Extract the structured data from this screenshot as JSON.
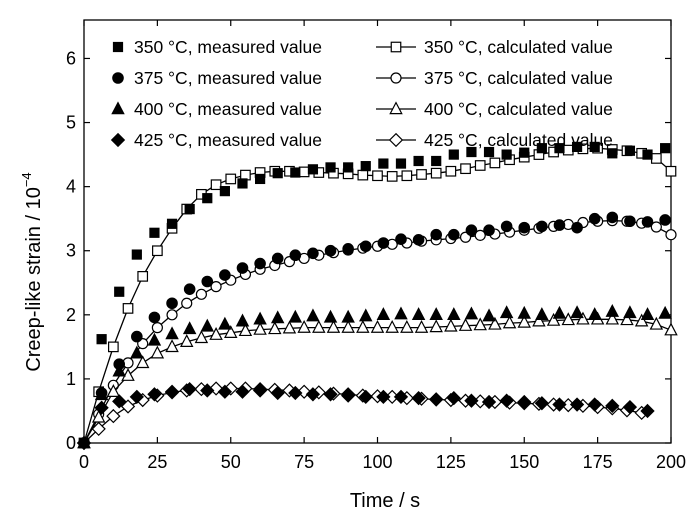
{
  "chart_data": {
    "type": "scatter",
    "xlabel": "Time / s",
    "ylabel": "Creep-like strain / 10",
    "ylabel_exponent": "−4",
    "xlim": [
      0,
      200
    ],
    "ylim": [
      0,
      6.6
    ],
    "xticks": [
      0,
      25,
      50,
      75,
      100,
      125,
      150,
      175,
      200
    ],
    "yticks": [
      0,
      1,
      2,
      3,
      4,
      5,
      6
    ],
    "legend_position": "top",
    "series": [
      {
        "name": "350 °C, measured value",
        "marker": "square",
        "filled": true,
        "line": false,
        "x": [
          0,
          6,
          12,
          18,
          24,
          30,
          36,
          42,
          48,
          54,
          60,
          66,
          72,
          78,
          84,
          90,
          96,
          102,
          108,
          114,
          120,
          126,
          132,
          138,
          144,
          150,
          156,
          162,
          168,
          174,
          180,
          186,
          192,
          198
        ],
        "y": [
          0,
          1.62,
          2.36,
          2.94,
          3.28,
          3.42,
          3.65,
          3.82,
          3.93,
          4.05,
          4.12,
          4.21,
          4.22,
          4.27,
          4.3,
          4.3,
          4.32,
          4.36,
          4.36,
          4.4,
          4.4,
          4.5,
          4.54,
          4.54,
          4.5,
          4.53,
          4.6,
          4.6,
          4.62,
          4.62,
          4.52,
          4.56,
          4.5,
          4.6
        ]
      },
      {
        "name": "350 °C, calculated value",
        "marker": "square",
        "filled": false,
        "line": true,
        "x": [
          0,
          5,
          10,
          15,
          20,
          25,
          30,
          35,
          40,
          45,
          50,
          55,
          60,
          65,
          70,
          75,
          80,
          85,
          90,
          95,
          100,
          105,
          110,
          115,
          120,
          125,
          130,
          135,
          140,
          145,
          150,
          155,
          160,
          165,
          170,
          175,
          180,
          185,
          190,
          195,
          200
        ],
        "y": [
          0,
          0.8,
          1.5,
          2.1,
          2.6,
          3.0,
          3.35,
          3.65,
          3.88,
          4.03,
          4.12,
          4.18,
          4.22,
          4.24,
          4.24,
          4.23,
          4.22,
          4.21,
          4.2,
          4.18,
          4.17,
          4.16,
          4.17,
          4.19,
          4.21,
          4.24,
          4.28,
          4.33,
          4.37,
          4.42,
          4.46,
          4.5,
          4.54,
          4.57,
          4.59,
          4.6,
          4.58,
          4.56,
          4.52,
          4.44,
          4.24
        ]
      },
      {
        "name": "375 °C, measured value",
        "marker": "circle",
        "filled": true,
        "line": false,
        "x": [
          0,
          6,
          12,
          18,
          24,
          30,
          36,
          42,
          48,
          54,
          60,
          66,
          72,
          78,
          84,
          90,
          96,
          102,
          108,
          114,
          120,
          126,
          132,
          138,
          144,
          150,
          156,
          162,
          168,
          174,
          180,
          186,
          192,
          198
        ],
        "y": [
          0,
          0.78,
          1.23,
          1.66,
          1.96,
          2.18,
          2.4,
          2.52,
          2.62,
          2.73,
          2.8,
          2.88,
          2.93,
          2.96,
          3.0,
          3.03,
          3.07,
          3.12,
          3.18,
          3.17,
          3.25,
          3.25,
          3.32,
          3.32,
          3.38,
          3.36,
          3.38,
          3.4,
          3.36,
          3.5,
          3.52,
          3.46,
          3.45,
          3.48
        ]
      },
      {
        "name": "375 °C, calculated value",
        "marker": "circle",
        "filled": false,
        "line": true,
        "x": [
          0,
          5,
          10,
          15,
          20,
          25,
          30,
          35,
          40,
          45,
          50,
          55,
          60,
          65,
          70,
          75,
          80,
          85,
          90,
          95,
          100,
          105,
          110,
          115,
          120,
          125,
          130,
          135,
          140,
          145,
          150,
          155,
          160,
          165,
          170,
          175,
          180,
          185,
          190,
          195,
          200
        ],
        "y": [
          0,
          0.45,
          0.9,
          1.25,
          1.55,
          1.8,
          2.0,
          2.18,
          2.32,
          2.44,
          2.54,
          2.63,
          2.71,
          2.77,
          2.83,
          2.88,
          2.93,
          2.97,
          3.01,
          3.04,
          3.07,
          3.1,
          3.12,
          3.15,
          3.17,
          3.19,
          3.21,
          3.24,
          3.26,
          3.29,
          3.32,
          3.35,
          3.38,
          3.41,
          3.44,
          3.46,
          3.47,
          3.46,
          3.43,
          3.37,
          3.25
        ]
      },
      {
        "name": "400 °C, measured value",
        "marker": "triangle",
        "filled": true,
        "line": false,
        "x": [
          0,
          6,
          12,
          18,
          24,
          30,
          36,
          42,
          48,
          54,
          60,
          66,
          72,
          78,
          84,
          90,
          96,
          102,
          108,
          114,
          120,
          126,
          132,
          138,
          144,
          150,
          156,
          162,
          168,
          174,
          180,
          186,
          192,
          198
        ],
        "y": [
          0,
          0.75,
          1.12,
          1.4,
          1.6,
          1.7,
          1.78,
          1.82,
          1.85,
          1.9,
          1.93,
          1.95,
          1.96,
          1.98,
          1.96,
          1.96,
          1.98,
          2.0,
          2.01,
          2.0,
          2.0,
          2.0,
          2.01,
          1.98,
          2.03,
          2.02,
          2.0,
          2.02,
          2.03,
          2.0,
          2.05,
          2.03,
          2.0,
          2.02
        ]
      },
      {
        "name": "400 °C, calculated value",
        "marker": "triangle",
        "filled": false,
        "line": true,
        "x": [
          0,
          5,
          10,
          15,
          20,
          25,
          30,
          35,
          40,
          45,
          50,
          55,
          60,
          65,
          70,
          75,
          80,
          85,
          90,
          95,
          100,
          105,
          110,
          115,
          120,
          125,
          130,
          135,
          140,
          145,
          150,
          155,
          160,
          165,
          170,
          175,
          180,
          185,
          190,
          195,
          200
        ],
        "y": [
          0,
          0.4,
          0.8,
          1.05,
          1.25,
          1.4,
          1.5,
          1.58,
          1.64,
          1.69,
          1.72,
          1.75,
          1.77,
          1.78,
          1.79,
          1.8,
          1.8,
          1.8,
          1.8,
          1.8,
          1.8,
          1.8,
          1.8,
          1.8,
          1.81,
          1.82,
          1.83,
          1.84,
          1.85,
          1.87,
          1.88,
          1.9,
          1.91,
          1.92,
          1.93,
          1.93,
          1.93,
          1.92,
          1.9,
          1.85,
          1.76
        ]
      },
      {
        "name": "425 °C, measured value",
        "marker": "diamond",
        "filled": true,
        "line": false,
        "x": [
          0,
          6,
          12,
          18,
          24,
          30,
          36,
          42,
          48,
          54,
          60,
          66,
          72,
          78,
          84,
          90,
          96,
          102,
          108,
          114,
          120,
          126,
          132,
          138,
          144,
          150,
          156,
          162,
          168,
          174,
          180,
          186,
          192
        ],
        "y": [
          0,
          0.55,
          0.65,
          0.72,
          0.76,
          0.8,
          0.84,
          0.82,
          0.8,
          0.8,
          0.82,
          0.78,
          0.78,
          0.76,
          0.76,
          0.74,
          0.72,
          0.72,
          0.72,
          0.7,
          0.68,
          0.7,
          0.66,
          0.64,
          0.66,
          0.64,
          0.62,
          0.6,
          0.6,
          0.6,
          0.58,
          0.56,
          0.5
        ]
      },
      {
        "name": "425 °C, calculated value",
        "marker": "diamond",
        "filled": false,
        "line": true,
        "x": [
          0,
          5,
          10,
          15,
          20,
          25,
          30,
          35,
          40,
          45,
          50,
          55,
          60,
          65,
          70,
          75,
          80,
          85,
          90,
          95,
          100,
          105,
          110,
          115,
          120,
          125,
          130,
          135,
          140,
          145,
          150,
          155,
          160,
          165,
          170,
          175,
          180,
          185,
          190
        ],
        "y": [
          0,
          0.22,
          0.42,
          0.57,
          0.67,
          0.74,
          0.79,
          0.82,
          0.84,
          0.85,
          0.85,
          0.85,
          0.84,
          0.83,
          0.82,
          0.8,
          0.79,
          0.77,
          0.76,
          0.74,
          0.73,
          0.72,
          0.7,
          0.69,
          0.68,
          0.67,
          0.66,
          0.65,
          0.64,
          0.63,
          0.62,
          0.61,
          0.6,
          0.59,
          0.58,
          0.56,
          0.54,
          0.51,
          0.47
        ]
      }
    ]
  }
}
